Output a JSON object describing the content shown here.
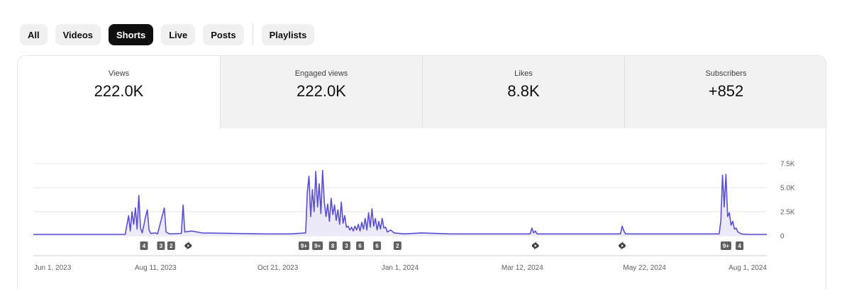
{
  "tabs": [
    {
      "label": "All",
      "active": false
    },
    {
      "label": "Videos",
      "active": false
    },
    {
      "label": "Shorts",
      "active": true
    },
    {
      "label": "Live",
      "active": false
    },
    {
      "label": "Posts",
      "active": false
    },
    {
      "label": "Playlists",
      "active": false
    }
  ],
  "metrics": [
    {
      "label": "Views",
      "value": "222.0K",
      "selected": true
    },
    {
      "label": "Engaged views",
      "value": "222.0K",
      "selected": false
    },
    {
      "label": "Likes",
      "value": "8.8K",
      "selected": false
    },
    {
      "label": "Subscribers",
      "value": "+852",
      "selected": false
    }
  ],
  "colors": {
    "line": "#5a4fcf",
    "fill": "#eceaf8",
    "badge": "#606060",
    "active_chip": "#0f0f0f"
  },
  "chart_data": {
    "type": "area",
    "y_ticks": [
      "7.5K",
      "5.0K",
      "2.5K",
      "0"
    ],
    "ylim": [
      0,
      7500
    ],
    "grid": true,
    "x_range": [
      "2023-06-01",
      "2024-08-05"
    ],
    "x_tick_labels": [
      "Jun 1, 2023",
      "Aug 11, 2023",
      "Oct 21, 2023",
      "Jan 1, 2024",
      "Mar 12, 2024",
      "May 22, 2024",
      "Aug 1, 2024"
    ],
    "series": [
      {
        "points": [
          [
            "2023-06-01",
            150
          ],
          [
            "2023-07-25",
            150
          ],
          [
            "2023-07-27",
            2100
          ],
          [
            "2023-07-28",
            500
          ],
          [
            "2023-07-29",
            2500
          ],
          [
            "2023-07-30",
            1200
          ],
          [
            "2023-07-31",
            2900
          ],
          [
            "2023-08-01",
            700
          ],
          [
            "2023-08-02",
            4200
          ],
          [
            "2023-08-03",
            800
          ],
          [
            "2023-08-04",
            300
          ],
          [
            "2023-08-06",
            2000
          ],
          [
            "2023-08-07",
            2700
          ],
          [
            "2023-08-08",
            600
          ],
          [
            "2023-08-09",
            250
          ],
          [
            "2023-08-12",
            300
          ],
          [
            "2023-08-13",
            200
          ],
          [
            "2023-08-17",
            2900
          ],
          [
            "2023-08-18",
            400
          ],
          [
            "2023-08-20",
            200
          ],
          [
            "2023-08-27",
            250
          ],
          [
            "2023-08-28",
            3200
          ],
          [
            "2023-08-29",
            400
          ],
          [
            "2023-09-02",
            500
          ],
          [
            "2023-09-08",
            300
          ],
          [
            "2023-09-25",
            250
          ],
          [
            "2023-10-15",
            200
          ],
          [
            "2023-10-30",
            200
          ],
          [
            "2023-11-08",
            300
          ],
          [
            "2023-11-09",
            4600
          ],
          [
            "2023-11-10",
            6200
          ],
          [
            "2023-11-11",
            2000
          ],
          [
            "2023-11-12",
            4800
          ],
          [
            "2023-11-13",
            2500
          ],
          [
            "2023-11-14",
            6700
          ],
          [
            "2023-11-15",
            3000
          ],
          [
            "2023-11-16",
            5400
          ],
          [
            "2023-11-17",
            2300
          ],
          [
            "2023-11-18",
            6800
          ],
          [
            "2023-11-19",
            3500
          ],
          [
            "2023-11-20",
            2000
          ],
          [
            "2023-11-21",
            3300
          ],
          [
            "2023-11-22",
            1500
          ],
          [
            "2023-11-23",
            3900
          ],
          [
            "2023-11-24",
            2200
          ],
          [
            "2023-11-25",
            3200
          ],
          [
            "2023-11-26",
            1600
          ],
          [
            "2023-11-27",
            2700
          ],
          [
            "2023-11-28",
            1200
          ],
          [
            "2023-11-29",
            3500
          ],
          [
            "2023-11-30",
            1300
          ],
          [
            "2023-12-01",
            2100
          ],
          [
            "2023-12-02",
            900
          ],
          [
            "2023-12-03",
            1000
          ],
          [
            "2023-12-04",
            600
          ],
          [
            "2023-12-05",
            900
          ],
          [
            "2023-12-06",
            500
          ],
          [
            "2023-12-07",
            1000
          ],
          [
            "2023-12-08",
            600
          ],
          [
            "2023-12-09",
            1200
          ],
          [
            "2023-12-10",
            500
          ],
          [
            "2023-12-11",
            1400
          ],
          [
            "2023-12-12",
            700
          ],
          [
            "2023-12-13",
            1800
          ],
          [
            "2023-12-14",
            600
          ],
          [
            "2023-12-15",
            2400
          ],
          [
            "2023-12-16",
            900
          ],
          [
            "2023-12-17",
            2800
          ],
          [
            "2023-12-18",
            1000
          ],
          [
            "2023-12-19",
            1800
          ],
          [
            "2023-12-20",
            600
          ],
          [
            "2023-12-21",
            1500
          ],
          [
            "2023-12-22",
            700
          ],
          [
            "2023-12-23",
            1800
          ],
          [
            "2023-12-24",
            800
          ],
          [
            "2023-12-25",
            900
          ],
          [
            "2023-12-26",
            400
          ],
          [
            "2023-12-28",
            600
          ],
          [
            "2023-12-30",
            300
          ],
          [
            "2024-01-05",
            200
          ],
          [
            "2024-01-15",
            300
          ],
          [
            "2024-02-01",
            200
          ],
          [
            "2024-02-20",
            200
          ],
          [
            "2024-03-10",
            200
          ],
          [
            "2024-03-15",
            200
          ],
          [
            "2024-03-19",
            200
          ],
          [
            "2024-03-20",
            800
          ],
          [
            "2024-03-21",
            300
          ],
          [
            "2024-03-22",
            500
          ],
          [
            "2024-03-23",
            200
          ],
          [
            "2024-04-10",
            200
          ],
          [
            "2024-05-01",
            200
          ],
          [
            "2024-05-11",
            200
          ],
          [
            "2024-05-12",
            1000
          ],
          [
            "2024-05-13",
            500
          ],
          [
            "2024-05-14",
            200
          ],
          [
            "2024-06-10",
            200
          ],
          [
            "2024-07-08",
            200
          ],
          [
            "2024-07-09",
            1500
          ],
          [
            "2024-07-10",
            6300
          ],
          [
            "2024-07-11",
            3000
          ],
          [
            "2024-07-12",
            6400
          ],
          [
            "2024-07-13",
            2000
          ],
          [
            "2024-07-14",
            2400
          ],
          [
            "2024-07-15",
            1100
          ],
          [
            "2024-07-16",
            1500
          ],
          [
            "2024-07-17",
            700
          ],
          [
            "2024-07-18",
            800
          ],
          [
            "2024-07-19",
            400
          ],
          [
            "2024-07-21",
            200
          ],
          [
            "2024-07-25",
            150
          ],
          [
            "2024-08-05",
            150
          ]
        ]
      }
    ],
    "upload_markers": [
      {
        "date": "2023-08-05",
        "label": "4"
      },
      {
        "date": "2023-08-15",
        "label": "3"
      },
      {
        "date": "2023-08-21",
        "label": "2"
      },
      {
        "date": "2023-08-31",
        "label": "",
        "icon": "shorts-icon"
      },
      {
        "date": "2023-11-07",
        "label": "9+"
      },
      {
        "date": "2023-11-15",
        "label": "9+"
      },
      {
        "date": "2023-11-24",
        "label": "8"
      },
      {
        "date": "2023-12-02",
        "label": "3"
      },
      {
        "date": "2023-12-10",
        "label": "6"
      },
      {
        "date": "2023-12-20",
        "label": "6"
      },
      {
        "date": "2024-01-01",
        "label": "2"
      },
      {
        "date": "2024-03-22",
        "label": "",
        "icon": "shorts-icon"
      },
      {
        "date": "2024-05-12",
        "label": "",
        "icon": "shorts-icon"
      },
      {
        "date": "2024-07-12",
        "label": "9+"
      },
      {
        "date": "2024-07-20",
        "label": "4"
      }
    ]
  }
}
